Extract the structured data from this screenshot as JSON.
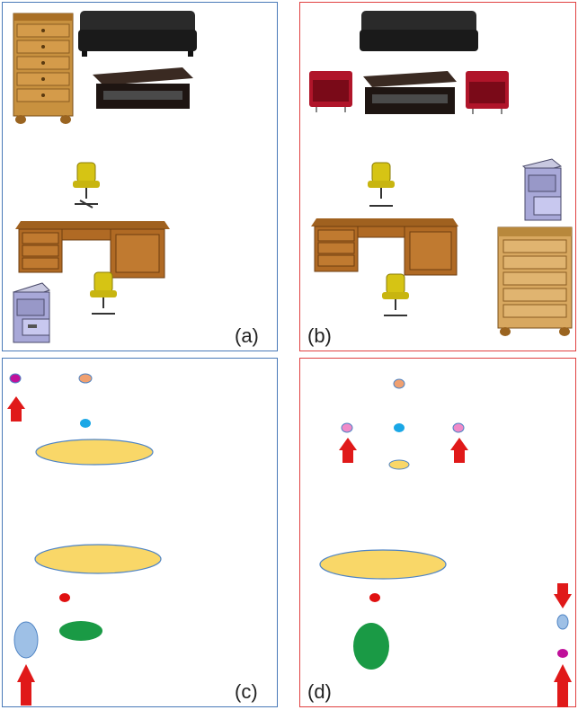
{
  "panels": [
    {
      "id": "a",
      "label": "(a)",
      "border_color": "#4a7ab8",
      "kind": "furniture-photos"
    },
    {
      "id": "b",
      "label": "(b)",
      "border_color": "#e04040",
      "kind": "furniture-photos"
    },
    {
      "id": "c",
      "label": "(c)",
      "border_color": "#4a7ab8",
      "kind": "abstract-layout"
    },
    {
      "id": "d",
      "label": "(d)",
      "border_color": "#e04040",
      "kind": "abstract-layout"
    }
  ],
  "colors": {
    "table_ellipse": "#f9d768",
    "table_stroke": "#4f84c4",
    "chair_dot": "#1aa7e6",
    "sofa_dot": "#f0a070",
    "armchair_dot": "#f08ac8",
    "dresser_dot": "#c0109a",
    "filecabinet_dot": "#e01010",
    "arrow": "#e01919",
    "green_ellipse": "#1a9a45",
    "light_blue_ellipse": "#9ec0e6"
  },
  "icons": [
    "dresser",
    "sofa",
    "coffee-table",
    "office-chair",
    "desk",
    "file-cabinet",
    "red-armchair",
    "up-arrow",
    "down-arrow"
  ]
}
